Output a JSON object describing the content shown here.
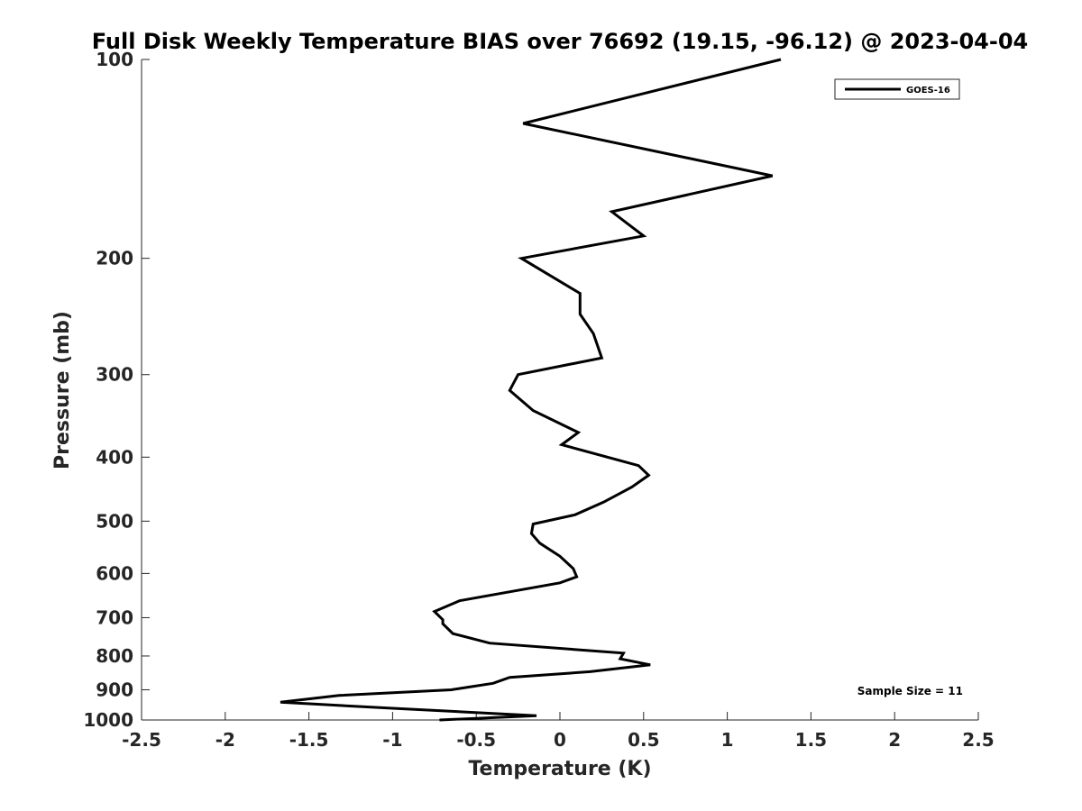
{
  "chart_data": {
    "type": "line",
    "title": "Full Disk Weekly Temperature BIAS over 76692 (19.15, -96.12) @ 2023-04-04",
    "xlabel": "Temperature (K)",
    "ylabel": "Pressure (mb)",
    "xlim": [
      -2.5,
      2.5
    ],
    "ylim": [
      100,
      1000
    ],
    "y_scale": "log",
    "y_direction": "reversed",
    "x_ticks": [
      -2.5,
      -2,
      -1.5,
      -1,
      -0.5,
      0,
      0.5,
      1,
      1.5,
      2,
      2.5
    ],
    "x_tick_labels": [
      "-2.5",
      "-2",
      "-1.5",
      "-1",
      "-0.5",
      "0",
      "0.5",
      "1",
      "1.5",
      "2",
      "2.5"
    ],
    "y_ticks": [
      100,
      200,
      300,
      400,
      500,
      600,
      700,
      800,
      900,
      1000
    ],
    "y_tick_labels": [
      "100",
      "200",
      "300",
      "400",
      "500",
      "600",
      "700",
      "800",
      "900",
      "1000"
    ],
    "grid": false,
    "legend_position": "top-right",
    "series": [
      {
        "name": "GOES-16",
        "color": "#000000",
        "points": [
          {
            "x": 1.32,
            "p": 100
          },
          {
            "x": -0.22,
            "p": 125
          },
          {
            "x": 1.27,
            "p": 150
          },
          {
            "x": 0.31,
            "p": 170
          },
          {
            "x": 0.5,
            "p": 185
          },
          {
            "x": -0.23,
            "p": 200
          },
          {
            "x": 0.12,
            "p": 226
          },
          {
            "x": 0.12,
            "p": 243
          },
          {
            "x": 0.2,
            "p": 260
          },
          {
            "x": 0.25,
            "p": 283
          },
          {
            "x": -0.25,
            "p": 300
          },
          {
            "x": -0.3,
            "p": 317
          },
          {
            "x": -0.16,
            "p": 340
          },
          {
            "x": 0.11,
            "p": 367
          },
          {
            "x": 0.01,
            "p": 383
          },
          {
            "x": 0.47,
            "p": 412
          },
          {
            "x": 0.53,
            "p": 426
          },
          {
            "x": 0.43,
            "p": 444
          },
          {
            "x": 0.26,
            "p": 468
          },
          {
            "x": 0.09,
            "p": 489
          },
          {
            "x": -0.16,
            "p": 505
          },
          {
            "x": -0.17,
            "p": 522
          },
          {
            "x": -0.12,
            "p": 540
          },
          {
            "x": 0.0,
            "p": 565
          },
          {
            "x": 0.08,
            "p": 590
          },
          {
            "x": 0.1,
            "p": 607
          },
          {
            "x": 0.0,
            "p": 620
          },
          {
            "x": -0.6,
            "p": 660
          },
          {
            "x": -0.75,
            "p": 685
          },
          {
            "x": -0.7,
            "p": 705
          },
          {
            "x": -0.7,
            "p": 715
          },
          {
            "x": -0.64,
            "p": 740
          },
          {
            "x": -0.42,
            "p": 765
          },
          {
            "x": 0.38,
            "p": 792
          },
          {
            "x": 0.36,
            "p": 808
          },
          {
            "x": 0.54,
            "p": 825
          },
          {
            "x": 0.18,
            "p": 845
          },
          {
            "x": -0.3,
            "p": 862
          },
          {
            "x": -0.4,
            "p": 880
          },
          {
            "x": -0.65,
            "p": 900
          },
          {
            "x": -1.32,
            "p": 918
          },
          {
            "x": -1.67,
            "p": 940
          },
          {
            "x": -1.0,
            "p": 960
          },
          {
            "x": -0.14,
            "p": 985
          },
          {
            "x": -0.72,
            "p": 1000
          }
        ]
      }
    ],
    "annotation": "Sample Size = 11"
  }
}
